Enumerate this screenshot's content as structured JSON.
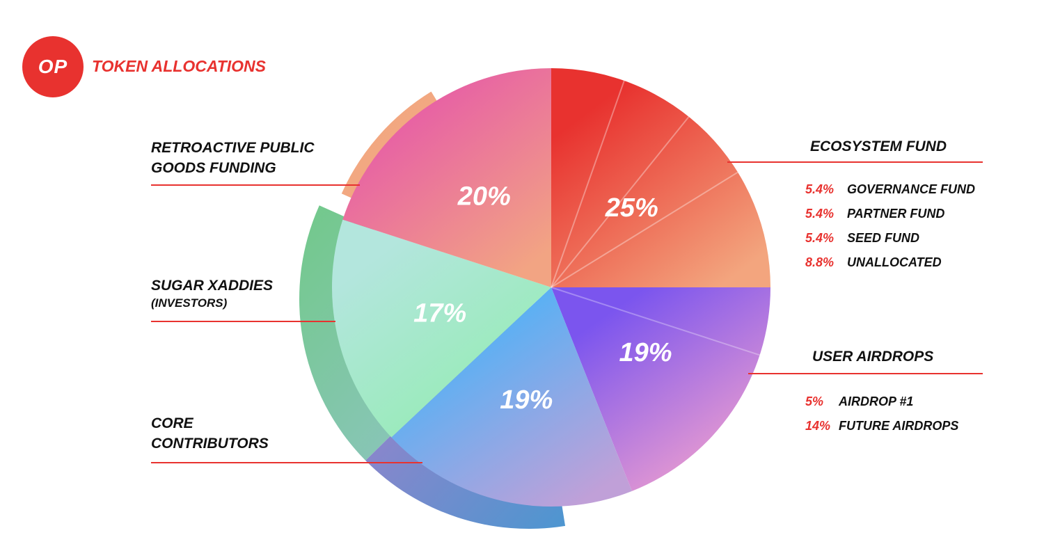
{
  "brand": {
    "logo_text": "OP",
    "title": "TOKEN ALLOCATIONS",
    "accent": "#e8322f"
  },
  "chart_data": {
    "type": "pie",
    "title": "TOKEN ALLOCATIONS",
    "slices": [
      {
        "label": "ECOSYSTEM FUND",
        "value": 25,
        "display": "25%",
        "colors": [
          "#e8322f",
          "#f3a57e"
        ]
      },
      {
        "label": "USER AIRDROPS",
        "value": 19,
        "display": "19%",
        "colors": [
          "#7b55ee",
          "#f4a3cd"
        ]
      },
      {
        "label": "CORE CONTRIBUTORS",
        "value": 19,
        "display": "19%",
        "colors": [
          "#4ab3f8",
          "#c0a0d8"
        ]
      },
      {
        "label": "SUGAR XADDIES (INVESTORS)",
        "value": 17,
        "display": "17%",
        "colors": [
          "#b3e6dd",
          "#92ecb0"
        ]
      },
      {
        "label": "RETROACTIVE PUBLIC GOODS FUNDING",
        "value": 20,
        "display": "20%",
        "colors": [
          "#e65aa8",
          "#f2a483"
        ]
      }
    ],
    "breakdowns": {
      "ecosystem": [
        {
          "pct": "5.4%",
          "name": "GOVERNANCE FUND",
          "value": 5.4
        },
        {
          "pct": "5.4%",
          "name": "PARTNER FUND",
          "value": 5.4
        },
        {
          "pct": "5.4%",
          "name": "SEED FUND",
          "value": 5.4
        },
        {
          "pct": "8.8%",
          "name": "UNALLOCATED",
          "value": 8.8
        }
      ],
      "airdrops": [
        {
          "pct": "5%",
          "name": "AIRDROP #1",
          "value": 5
        },
        {
          "pct": "14%",
          "name": "FUTURE AIRDROPS",
          "value": 14
        }
      ]
    }
  },
  "labels": {
    "ecosystem": "ECOSYSTEM FUND",
    "airdrops": "USER AIRDROPS",
    "retro_line1": "RETROACTIVE PUBLIC",
    "retro_line2": "GOODS FUNDING",
    "investors_line1": "SUGAR XADDIES",
    "investors_line2": "(INVESTORS)",
    "core_line1": "CORE",
    "core_line2": "CONTRIBUTORS"
  }
}
